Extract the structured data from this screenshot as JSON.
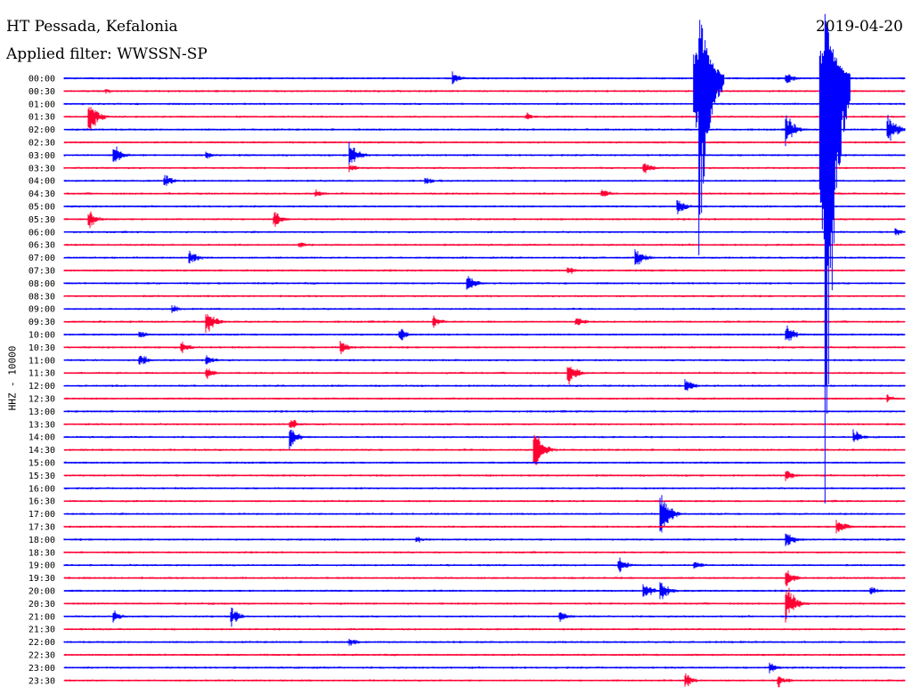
{
  "header": {
    "station": "HT Pessada, Kefalonia",
    "filter": "Applied filter: WWSSN-SP",
    "date": "2019-04-20"
  },
  "chart_data": {
    "type": "line",
    "title": "HT Pessada, Kefalonia",
    "subtitle": "Applied filter: WWSSN-SP",
    "date": "2019-04-20",
    "ylabel": "HHZ - 10000",
    "xlabel": "",
    "grid": false,
    "legend": "none",
    "colors": {
      "even_row": "#0000ff",
      "odd_row": "#ff0033"
    },
    "rows": [
      "00:00",
      "00:30",
      "01:00",
      "01:30",
      "02:00",
      "02:30",
      "03:00",
      "03:30",
      "04:00",
      "04:30",
      "05:00",
      "05:30",
      "06:00",
      "06:30",
      "07:00",
      "07:30",
      "08:00",
      "08:30",
      "09:00",
      "09:30",
      "10:00",
      "10:30",
      "11:00",
      "11:30",
      "12:00",
      "12:30",
      "13:00",
      "13:30",
      "14:00",
      "14:30",
      "15:00",
      "15:30",
      "16:00",
      "16:30",
      "17:00",
      "17:30",
      "18:00",
      "18:30",
      "19:00",
      "19:30",
      "20:00",
      "20:30",
      "21:00",
      "21:30",
      "22:00",
      "22:30",
      "23:00",
      "23:30"
    ],
    "events": [
      {
        "row": 0,
        "t": 0.463,
        "amp": 9
      },
      {
        "row": 0,
        "t": 0.86,
        "amp": 8
      },
      {
        "row": 1,
        "t": 0.05,
        "amp": 4
      },
      {
        "row": 3,
        "t": 0.03,
        "amp": 26
      },
      {
        "row": 3,
        "t": 0.55,
        "amp": 6
      },
      {
        "row": 4,
        "t": 0.86,
        "amp": 20
      },
      {
        "row": 4,
        "t": 0.98,
        "amp": 22
      },
      {
        "row": 6,
        "t": 0.06,
        "amp": 14
      },
      {
        "row": 6,
        "t": 0.34,
        "amp": 18
      },
      {
        "row": 6,
        "t": 0.17,
        "amp": 5
      },
      {
        "row": 7,
        "t": 0.34,
        "amp": 6
      },
      {
        "row": 7,
        "t": 0.69,
        "amp": 9
      },
      {
        "row": 8,
        "t": 0.12,
        "amp": 9
      },
      {
        "row": 8,
        "t": 0.43,
        "amp": 6
      },
      {
        "row": 9,
        "t": 0.3,
        "amp": 5
      },
      {
        "row": 9,
        "t": 0.64,
        "amp": 7
      },
      {
        "row": 10,
        "t": 0.73,
        "amp": 12
      },
      {
        "row": 11,
        "t": 0.03,
        "amp": 12
      },
      {
        "row": 11,
        "t": 0.25,
        "amp": 12
      },
      {
        "row": 12,
        "t": 0.99,
        "amp": 6
      },
      {
        "row": 13,
        "t": 0.28,
        "amp": 5
      },
      {
        "row": 14,
        "t": 0.15,
        "amp": 11
      },
      {
        "row": 14,
        "t": 0.68,
        "amp": 15
      },
      {
        "row": 15,
        "t": 0.6,
        "amp": 6
      },
      {
        "row": 16,
        "t": 0.48,
        "amp": 14
      },
      {
        "row": 18,
        "t": 0.13,
        "amp": 5
      },
      {
        "row": 19,
        "t": 0.17,
        "amp": 18
      },
      {
        "row": 19,
        "t": 0.44,
        "amp": 8
      },
      {
        "row": 19,
        "t": 0.61,
        "amp": 8
      },
      {
        "row": 20,
        "t": 0.09,
        "amp": 7
      },
      {
        "row": 20,
        "t": 0.4,
        "amp": 10
      },
      {
        "row": 20,
        "t": 0.86,
        "amp": 12
      },
      {
        "row": 21,
        "t": 0.14,
        "amp": 9
      },
      {
        "row": 21,
        "t": 0.33,
        "amp": 9
      },
      {
        "row": 22,
        "t": 0.09,
        "amp": 10
      },
      {
        "row": 22,
        "t": 0.17,
        "amp": 7
      },
      {
        "row": 23,
        "t": 0.17,
        "amp": 8
      },
      {
        "row": 23,
        "t": 0.6,
        "amp": 18
      },
      {
        "row": 24,
        "t": 0.74,
        "amp": 10
      },
      {
        "row": 25,
        "t": 0.98,
        "amp": 5
      },
      {
        "row": 27,
        "t": 0.27,
        "amp": 8
      },
      {
        "row": 28,
        "t": 0.27,
        "amp": 14
      },
      {
        "row": 28,
        "t": 0.94,
        "amp": 10
      },
      {
        "row": 29,
        "t": 0.56,
        "amp": 28
      },
      {
        "row": 31,
        "t": 0.86,
        "amp": 8
      },
      {
        "row": 34,
        "t": 0.71,
        "amp": 32
      },
      {
        "row": 35,
        "t": 0.92,
        "amp": 12
      },
      {
        "row": 36,
        "t": 0.86,
        "amp": 11
      },
      {
        "row": 36,
        "t": 0.42,
        "amp": 5
      },
      {
        "row": 38,
        "t": 0.66,
        "amp": 12
      },
      {
        "row": 38,
        "t": 0.75,
        "amp": 7
      },
      {
        "row": 39,
        "t": 0.86,
        "amp": 12
      },
      {
        "row": 40,
        "t": 0.69,
        "amp": 12
      },
      {
        "row": 40,
        "t": 0.71,
        "amp": 14
      },
      {
        "row": 40,
        "t": 0.96,
        "amp": 6
      },
      {
        "row": 41,
        "t": 0.86,
        "amp": 26
      },
      {
        "row": 42,
        "t": 0.06,
        "amp": 8
      },
      {
        "row": 42,
        "t": 0.2,
        "amp": 12
      },
      {
        "row": 42,
        "t": 0.59,
        "amp": 8
      },
      {
        "row": 44,
        "t": 0.34,
        "amp": 6
      },
      {
        "row": 46,
        "t": 0.84,
        "amp": 7
      },
      {
        "row": 47,
        "t": 0.74,
        "amp": 10
      },
      {
        "row": 47,
        "t": 0.85,
        "amp": 9
      }
    ],
    "major_events": [
      {
        "start_row": 0,
        "t": 0.755,
        "amp_up": 90,
        "amp_down": 210
      },
      {
        "start_row": 0,
        "t": 0.905,
        "amp_up": 90,
        "amp_down": 540
      }
    ]
  }
}
